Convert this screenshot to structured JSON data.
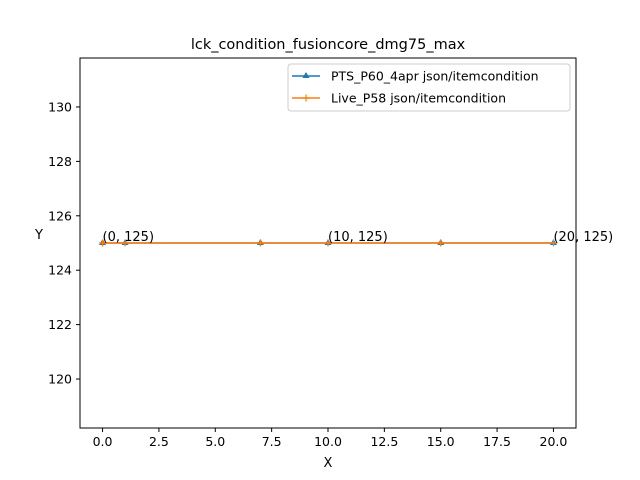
{
  "chart_data": {
    "type": "line",
    "title": "lck_condition_fusioncore_dmg75_max",
    "xlabel": "X",
    "ylabel": "Y",
    "xlim": [
      -1,
      21
    ],
    "ylim": [
      118.2,
      131.8
    ],
    "x_ticks": [
      0,
      2.5,
      5,
      7.5,
      10,
      12.5,
      15,
      17.5,
      20
    ],
    "x_tick_labels": [
      "0.0",
      "2.5",
      "5.0",
      "7.5",
      "10.0",
      "12.5",
      "15.0",
      "17.5",
      "20.0"
    ],
    "y_ticks": [
      120,
      122,
      124,
      126,
      128,
      130
    ],
    "y_tick_labels": [
      "120",
      "122",
      "124",
      "126",
      "128",
      "130"
    ],
    "grid": false,
    "legend_position": "top-right",
    "series": [
      {
        "name": "PTS_P60_4apr json/itemcondition",
        "color": "#1f77b4",
        "marker": "triangle",
        "x": [
          0,
          1,
          7,
          10,
          15,
          20
        ],
        "y": [
          125,
          125,
          125,
          125,
          125,
          125
        ]
      },
      {
        "name": "Live_P58 json/itemcondition",
        "color": "#ff7f0e",
        "marker": "plus",
        "x": [
          0,
          1,
          7,
          10,
          15,
          20
        ],
        "y": [
          125,
          125,
          125,
          125,
          125,
          125
        ]
      }
    ],
    "annotations": [
      {
        "x": 0,
        "y": 125,
        "text": "(0, 125)"
      },
      {
        "x": 10,
        "y": 125,
        "text": "(10, 125)"
      },
      {
        "x": 20,
        "y": 125,
        "text": "(20, 125)"
      }
    ]
  }
}
